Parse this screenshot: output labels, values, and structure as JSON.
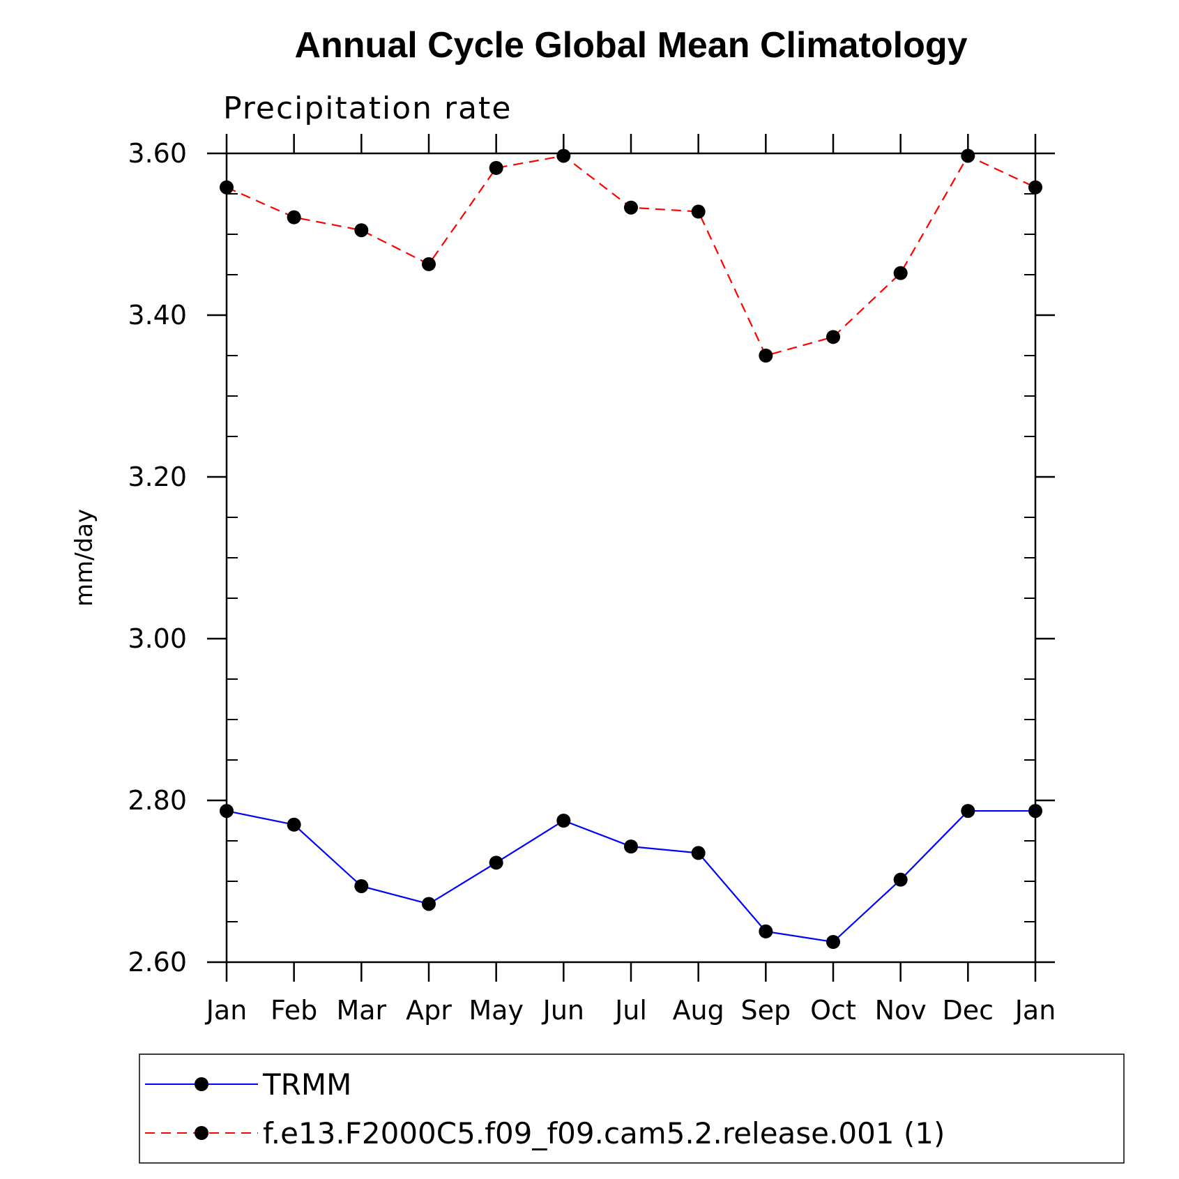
{
  "chart_data": {
    "type": "line",
    "title": "Annual Cycle Global Mean Climatology",
    "subtitle": "Precipitation rate",
    "ylabel": "mm/day",
    "xlabel": "",
    "categories": [
      "Jan",
      "Feb",
      "Mar",
      "Apr",
      "May",
      "Jun",
      "Jul",
      "Aug",
      "Sep",
      "Oct",
      "Nov",
      "Dec",
      "Jan"
    ],
    "ylim": [
      2.6,
      3.6
    ],
    "yticks": [
      "2.60",
      "2.80",
      "3.00",
      "3.20",
      "3.40",
      "3.60"
    ],
    "series": [
      {
        "name": "TRMM",
        "color": "#0000ff",
        "line_style": "solid",
        "marker": "filled-circle",
        "values": [
          2.787,
          2.77,
          2.694,
          2.672,
          2.723,
          2.775,
          2.743,
          2.735,
          2.638,
          2.625,
          2.702,
          2.787,
          2.787
        ]
      },
      {
        "name": "f.e13.F2000C5.f09_f09.cam5.2.release.001 (1)",
        "color": "#ff0000",
        "line_style": "dashed",
        "marker": "filled-circle",
        "values": [
          3.558,
          3.521,
          3.505,
          3.463,
          3.582,
          3.597,
          3.533,
          3.528,
          3.35,
          3.373,
          3.452,
          3.597,
          3.558
        ]
      }
    ],
    "legend_placement": "bottom",
    "grid": false
  }
}
